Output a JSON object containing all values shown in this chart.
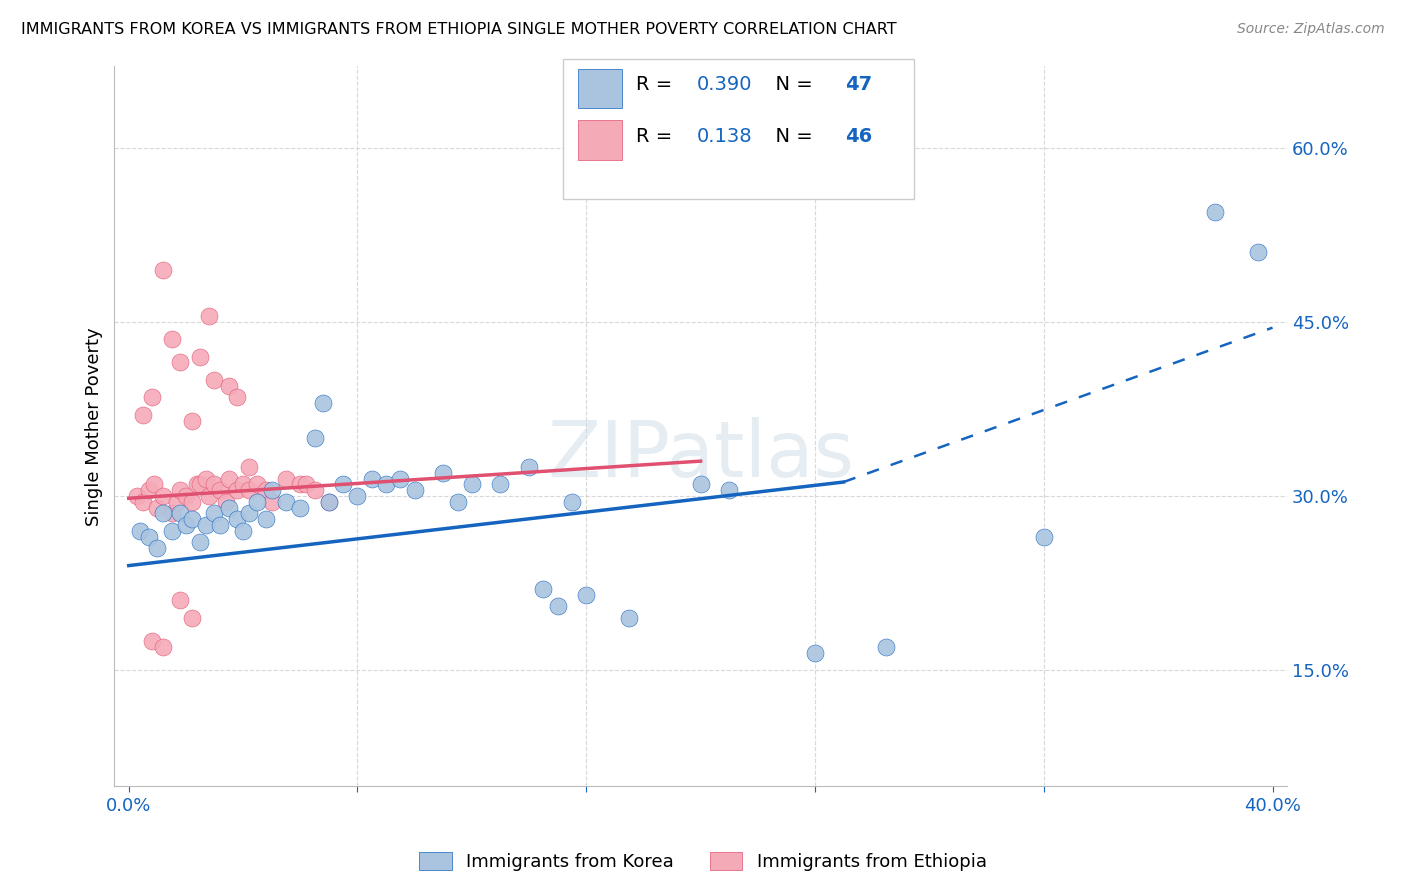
{
  "title": "IMMIGRANTS FROM KOREA VS IMMIGRANTS FROM ETHIOPIA SINGLE MOTHER POVERTY CORRELATION CHART",
  "source": "Source: ZipAtlas.com",
  "ylabel": "Single Mother Poverty",
  "y_ticks": [
    0.15,
    0.3,
    0.45,
    0.6
  ],
  "y_tick_labels": [
    "15.0%",
    "30.0%",
    "45.0%",
    "60.0%"
  ],
  "x_ticks": [
    0.0,
    0.08,
    0.16,
    0.24,
    0.32,
    0.4
  ],
  "x_tick_labels": [
    "0.0%",
    "",
    "",
    "",
    "",
    "40.0%"
  ],
  "watermark": "ZIPatlas",
  "legend_korea_r": "0.390",
  "legend_korea_n": "47",
  "legend_ethiopia_r": "0.138",
  "legend_ethiopia_n": "46",
  "korea_color": "#aac4df",
  "ethiopia_color": "#f5aab8",
  "korea_line_color": "#1565c0",
  "ethiopia_line_color": "#e05070",
  "blue_text_color": "#1565c0",
  "korea_scatter": [
    [
      0.004,
      0.27
    ],
    [
      0.007,
      0.265
    ],
    [
      0.01,
      0.255
    ],
    [
      0.012,
      0.285
    ],
    [
      0.015,
      0.27
    ],
    [
      0.018,
      0.285
    ],
    [
      0.02,
      0.275
    ],
    [
      0.022,
      0.28
    ],
    [
      0.025,
      0.26
    ],
    [
      0.027,
      0.275
    ],
    [
      0.03,
      0.285
    ],
    [
      0.032,
      0.275
    ],
    [
      0.035,
      0.29
    ],
    [
      0.038,
      0.28
    ],
    [
      0.04,
      0.27
    ],
    [
      0.042,
      0.285
    ],
    [
      0.045,
      0.295
    ],
    [
      0.048,
      0.28
    ],
    [
      0.05,
      0.305
    ],
    [
      0.055,
      0.295
    ],
    [
      0.06,
      0.29
    ],
    [
      0.065,
      0.35
    ],
    [
      0.068,
      0.38
    ],
    [
      0.07,
      0.295
    ],
    [
      0.075,
      0.31
    ],
    [
      0.08,
      0.3
    ],
    [
      0.085,
      0.315
    ],
    [
      0.09,
      0.31
    ],
    [
      0.095,
      0.315
    ],
    [
      0.1,
      0.305
    ],
    [
      0.11,
      0.32
    ],
    [
      0.115,
      0.295
    ],
    [
      0.12,
      0.31
    ],
    [
      0.13,
      0.31
    ],
    [
      0.14,
      0.325
    ],
    [
      0.145,
      0.22
    ],
    [
      0.15,
      0.205
    ],
    [
      0.155,
      0.295
    ],
    [
      0.16,
      0.215
    ],
    [
      0.175,
      0.195
    ],
    [
      0.2,
      0.31
    ],
    [
      0.21,
      0.305
    ],
    [
      0.24,
      0.165
    ],
    [
      0.265,
      0.17
    ],
    [
      0.32,
      0.265
    ],
    [
      0.38,
      0.545
    ],
    [
      0.395,
      0.51
    ]
  ],
  "ethiopia_scatter": [
    [
      0.003,
      0.3
    ],
    [
      0.005,
      0.295
    ],
    [
      0.007,
      0.305
    ],
    [
      0.009,
      0.31
    ],
    [
      0.01,
      0.29
    ],
    [
      0.012,
      0.3
    ],
    [
      0.015,
      0.285
    ],
    [
      0.017,
      0.295
    ],
    [
      0.018,
      0.305
    ],
    [
      0.02,
      0.3
    ],
    [
      0.022,
      0.295
    ],
    [
      0.024,
      0.31
    ],
    [
      0.025,
      0.31
    ],
    [
      0.027,
      0.315
    ],
    [
      0.028,
      0.3
    ],
    [
      0.03,
      0.31
    ],
    [
      0.032,
      0.305
    ],
    [
      0.034,
      0.295
    ],
    [
      0.035,
      0.315
    ],
    [
      0.038,
      0.305
    ],
    [
      0.04,
      0.31
    ],
    [
      0.042,
      0.305
    ],
    [
      0.045,
      0.31
    ],
    [
      0.048,
      0.305
    ],
    [
      0.05,
      0.295
    ],
    [
      0.055,
      0.315
    ],
    [
      0.06,
      0.31
    ],
    [
      0.062,
      0.31
    ],
    [
      0.065,
      0.305
    ],
    [
      0.07,
      0.295
    ],
    [
      0.005,
      0.37
    ],
    [
      0.008,
      0.385
    ],
    [
      0.012,
      0.495
    ],
    [
      0.015,
      0.435
    ],
    [
      0.018,
      0.415
    ],
    [
      0.022,
      0.365
    ],
    [
      0.025,
      0.42
    ],
    [
      0.028,
      0.455
    ],
    [
      0.03,
      0.4
    ],
    [
      0.035,
      0.395
    ],
    [
      0.038,
      0.385
    ],
    [
      0.042,
      0.325
    ],
    [
      0.008,
      0.175
    ],
    [
      0.012,
      0.17
    ],
    [
      0.018,
      0.21
    ],
    [
      0.022,
      0.195
    ]
  ],
  "korea_trendline_solid": [
    [
      0.0,
      0.24
    ],
    [
      0.25,
      0.312
    ]
  ],
  "korea_trendline_dashed": [
    [
      0.25,
      0.312
    ],
    [
      0.4,
      0.445
    ]
  ],
  "ethiopia_trendline": [
    [
      0.0,
      0.298
    ],
    [
      0.2,
      0.33
    ]
  ],
  "xlim": [
    -0.005,
    0.405
  ],
  "ylim": [
    0.05,
    0.67
  ],
  "background_color": "#ffffff",
  "grid_color": "#d8d8d8"
}
